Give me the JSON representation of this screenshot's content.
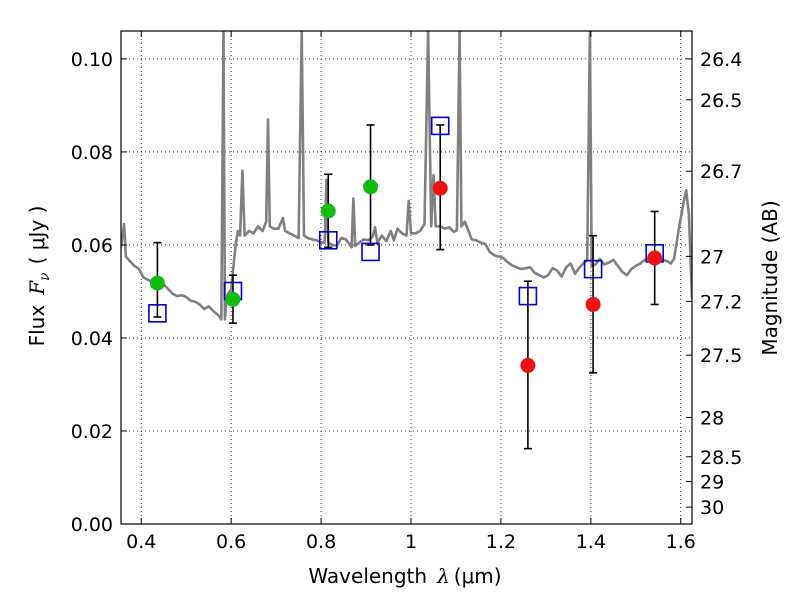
{
  "chart_data": {
    "type": "scatter",
    "xlabel_prefix": "Wavelength",
    "xlabel_symbol": "λ",
    "xlabel_unit": "(μm)",
    "ylabel_prefix": "Flux",
    "ylabel_symbol": "F",
    "ylabel_subscript": "ν",
    "ylabel_unit": "( μJy )",
    "y2label": "Magnitude (AB)",
    "xlim": [
      0.355,
      1.625
    ],
    "ylim": [
      0.0,
      0.106
    ],
    "grid": true,
    "xticks": [
      0.4,
      0.6,
      0.8,
      1.0,
      1.2,
      1.4,
      1.6
    ],
    "xtick_labels": [
      "0.4",
      "0.6",
      "0.8",
      "1",
      "1.2",
      "1.4",
      "1.6"
    ],
    "yticks": [
      0.0,
      0.02,
      0.04,
      0.06,
      0.08,
      0.1
    ],
    "ytick_labels": [
      "0.00",
      "0.02",
      "0.04",
      "0.06",
      "0.08",
      "0.10"
    ],
    "y2ticks": [
      {
        "mag": 26.4,
        "label": "26.4"
      },
      {
        "mag": 26.5,
        "label": "26.5"
      },
      {
        "mag": 26.7,
        "label": "26.7"
      },
      {
        "mag": 27.0,
        "label": "27"
      },
      {
        "mag": 27.2,
        "label": "27.2"
      },
      {
        "mag": 27.5,
        "label": "27.5"
      },
      {
        "mag": 28.0,
        "label": "28"
      },
      {
        "mag": 28.5,
        "label": "28.5"
      },
      {
        "mag": 29.0,
        "label": "29"
      },
      {
        "mag": 30.0,
        "label": "30"
      }
    ],
    "model_spectrum": {
      "color": "#808080",
      "points": [
        [
          0.355,
          0.0595
        ],
        [
          0.362,
          0.0645
        ],
        [
          0.366,
          0.0575
        ],
        [
          0.375,
          0.0565
        ],
        [
          0.385,
          0.0555
        ],
        [
          0.395,
          0.0548
        ],
        [
          0.405,
          0.053
        ],
        [
          0.415,
          0.0525
        ],
        [
          0.425,
          0.052
        ],
        [
          0.435,
          0.051
        ],
        [
          0.442,
          0.0522
        ],
        [
          0.45,
          0.0515
        ],
        [
          0.46,
          0.0505
        ],
        [
          0.47,
          0.0495
        ],
        [
          0.48,
          0.049
        ],
        [
          0.49,
          0.0492
        ],
        [
          0.5,
          0.0488
        ],
        [
          0.51,
          0.048
        ],
        [
          0.52,
          0.0478
        ],
        [
          0.53,
          0.0472
        ],
        [
          0.54,
          0.0462
        ],
        [
          0.55,
          0.0468
        ],
        [
          0.56,
          0.0458
        ],
        [
          0.57,
          0.045
        ],
        [
          0.575,
          0.0445
        ],
        [
          0.578,
          0.044
        ],
        [
          0.583,
          0.106
        ],
        [
          0.586,
          0.044
        ],
        [
          0.59,
          0.049
        ],
        [
          0.6,
          0.0505
        ],
        [
          0.61,
          0.06
        ],
        [
          0.615,
          0.063
        ],
        [
          0.62,
          0.062
        ],
        [
          0.625,
          0.076
        ],
        [
          0.63,
          0.062
        ],
        [
          0.64,
          0.063
        ],
        [
          0.65,
          0.0625
        ],
        [
          0.66,
          0.064
        ],
        [
          0.67,
          0.063
        ],
        [
          0.678,
          0.065
        ],
        [
          0.682,
          0.087
        ],
        [
          0.686,
          0.064
        ],
        [
          0.695,
          0.0635
        ],
        [
          0.705,
          0.0635
        ],
        [
          0.715,
          0.0658
        ],
        [
          0.72,
          0.063
        ],
        [
          0.73,
          0.0625
        ],
        [
          0.74,
          0.062
        ],
        [
          0.75,
          0.0615
        ],
        [
          0.757,
          0.106
        ],
        [
          0.762,
          0.062
        ],
        [
          0.77,
          0.0615
        ],
        [
          0.78,
          0.0612
        ],
        [
          0.79,
          0.061
        ],
        [
          0.8,
          0.0605
        ],
        [
          0.808,
          0.0605
        ],
        [
          0.812,
          0.074
        ],
        [
          0.816,
          0.0605
        ],
        [
          0.825,
          0.06
        ],
        [
          0.835,
          0.0598
        ],
        [
          0.845,
          0.0615
        ],
        [
          0.855,
          0.0612
        ],
        [
          0.862,
          0.0603
        ],
        [
          0.868,
          0.0595
        ],
        [
          0.872,
          0.07
        ],
        [
          0.876,
          0.0598
        ],
        [
          0.885,
          0.0605
        ],
        [
          0.895,
          0.0612
        ],
        [
          0.905,
          0.061
        ],
        [
          0.915,
          0.0618
        ],
        [
          0.92,
          0.0638
        ],
        [
          0.925,
          0.0605
        ],
        [
          0.935,
          0.062
        ],
        [
          0.945,
          0.0608
        ],
        [
          0.955,
          0.063
        ],
        [
          0.962,
          0.061
        ],
        [
          0.97,
          0.0635
        ],
        [
          0.98,
          0.0625
        ],
        [
          0.99,
          0.062
        ],
        [
          0.995,
          0.0695
        ],
        [
          1.0,
          0.0625
        ],
        [
          1.01,
          0.0625
        ],
        [
          1.02,
          0.063
        ],
        [
          1.03,
          0.0645
        ],
        [
          1.038,
          0.106
        ],
        [
          1.045,
          0.064
        ],
        [
          1.05,
          0.075
        ],
        [
          1.055,
          0.064
        ],
        [
          1.065,
          0.064
        ],
        [
          1.075,
          0.0635
        ],
        [
          1.085,
          0.0638
        ],
        [
          1.095,
          0.0628
        ],
        [
          1.102,
          0.0632
        ],
        [
          1.108,
          0.106
        ],
        [
          1.112,
          0.064
        ],
        [
          1.12,
          0.065
        ],
        [
          1.128,
          0.063
        ],
        [
          1.135,
          0.0612
        ],
        [
          1.145,
          0.061
        ],
        [
          1.155,
          0.0605
        ],
        [
          1.165,
          0.0602
        ],
        [
          1.175,
          0.0585
        ],
        [
          1.185,
          0.0578
        ],
        [
          1.195,
          0.0575
        ],
        [
          1.205,
          0.0572
        ],
        [
          1.215,
          0.0563
        ],
        [
          1.225,
          0.0556
        ],
        [
          1.235,
          0.0552
        ],
        [
          1.245,
          0.0548
        ],
        [
          1.255,
          0.055
        ],
        [
          1.265,
          0.0552
        ],
        [
          1.275,
          0.054
        ],
        [
          1.285,
          0.0535
        ],
        [
          1.295,
          0.053
        ],
        [
          1.305,
          0.0535
        ],
        [
          1.315,
          0.055
        ],
        [
          1.325,
          0.0545
        ],
        [
          1.335,
          0.0532
        ],
        [
          1.345,
          0.0552
        ],
        [
          1.355,
          0.056
        ],
        [
          1.365,
          0.0538
        ],
        [
          1.375,
          0.0552
        ],
        [
          1.385,
          0.0562
        ],
        [
          1.392,
          0.0567
        ],
        [
          1.398,
          0.106
        ],
        [
          1.402,
          0.0555
        ],
        [
          1.41,
          0.0558
        ],
        [
          1.42,
          0.057
        ],
        [
          1.43,
          0.0558
        ],
        [
          1.44,
          0.0562
        ],
        [
          1.45,
          0.0568
        ],
        [
          1.46,
          0.0555
        ],
        [
          1.47,
          0.0542
        ],
        [
          1.48,
          0.0535
        ],
        [
          1.49,
          0.0548
        ],
        [
          1.5,
          0.0555
        ],
        [
          1.51,
          0.056
        ],
        [
          1.52,
          0.0568
        ],
        [
          1.53,
          0.057
        ],
        [
          1.54,
          0.0572
        ],
        [
          1.55,
          0.0565
        ],
        [
          1.56,
          0.0568
        ],
        [
          1.57,
          0.0565
        ],
        [
          1.578,
          0.056
        ],
        [
          1.585,
          0.057
        ],
        [
          1.595,
          0.063
        ],
        [
          1.605,
          0.0685
        ],
        [
          1.612,
          0.0718
        ],
        [
          1.618,
          0.0665
        ],
        [
          1.625,
          0.0485
        ]
      ]
    },
    "squares": {
      "color": "#0000cc",
      "points": [
        [
          0.436,
          0.0453
        ],
        [
          0.604,
          0.0501
        ],
        [
          0.816,
          0.061
        ],
        [
          0.91,
          0.0585
        ],
        [
          1.065,
          0.0856
        ],
        [
          1.26,
          0.049
        ],
        [
          1.405,
          0.0548
        ],
        [
          1.542,
          0.0582
        ]
      ]
    },
    "green_points": {
      "color": "#11bb11",
      "points": [
        {
          "x": 0.436,
          "y": 0.0518,
          "ylo": 0.0445,
          "yhi": 0.0605
        },
        {
          "x": 0.604,
          "y": 0.0483,
          "ylo": 0.0432,
          "yhi": 0.0535
        },
        {
          "x": 0.816,
          "y": 0.0673,
          "ylo": 0.0595,
          "yhi": 0.0752
        },
        {
          "x": 0.91,
          "y": 0.0725,
          "ylo": 0.06,
          "yhi": 0.0858
        }
      ]
    },
    "red_points": {
      "color": "#ee1111",
      "points": [
        {
          "x": 1.065,
          "y": 0.0722,
          "ylo": 0.059,
          "yhi": 0.0858
        },
        {
          "x": 1.26,
          "y": 0.0341,
          "ylo": 0.0162,
          "yhi": 0.0522
        },
        {
          "x": 1.405,
          "y": 0.0472,
          "ylo": 0.0325,
          "yhi": 0.062
        },
        {
          "x": 1.542,
          "y": 0.0572,
          "ylo": 0.0472,
          "yhi": 0.0672
        }
      ]
    }
  }
}
